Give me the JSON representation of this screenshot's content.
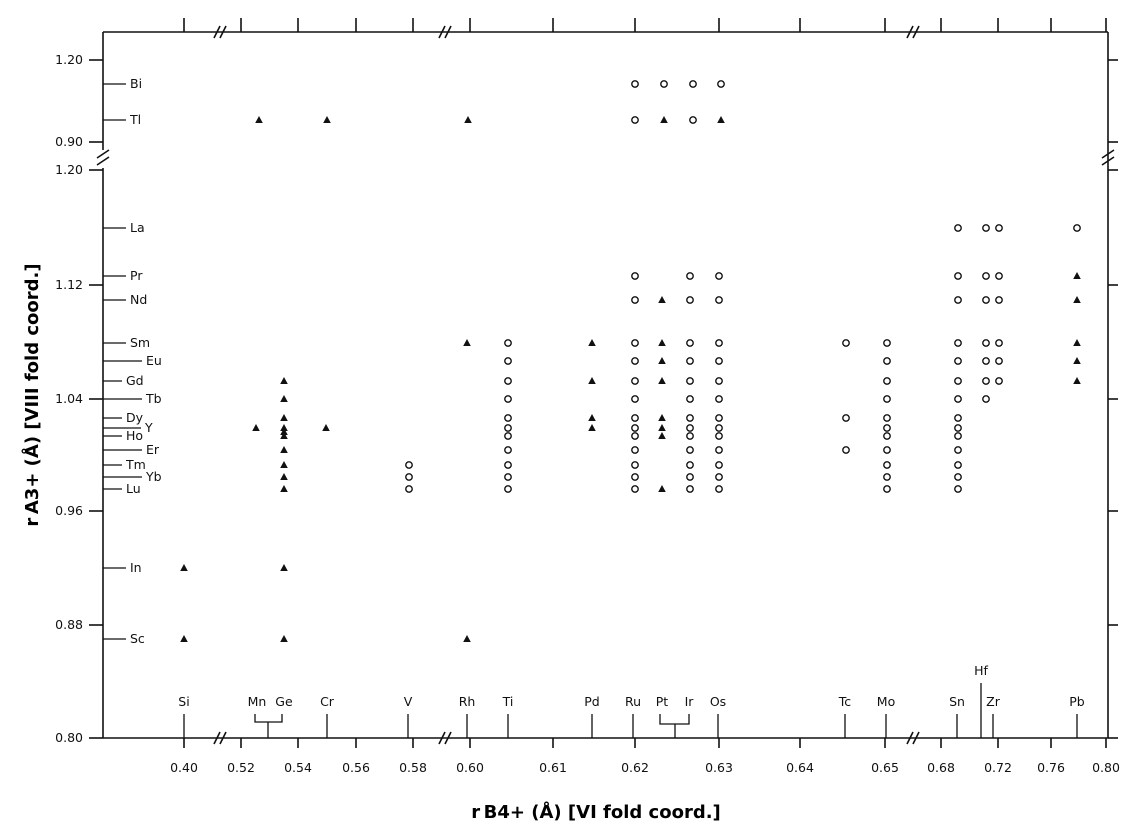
{
  "chart_data": {
    "type": "scatter",
    "xlabel": "r B4+ (Å)  [VI fold coord.]",
    "ylabel": "r A3+ (Å)  [VIII fold coord.]",
    "x_tick_labels": [
      "0.40",
      "0.52",
      "0.54",
      "0.56",
      "0.58",
      "0.60",
      "0.61",
      "0.62",
      "0.63",
      "0.64",
      "0.65",
      "0.68",
      "0.72",
      "0.76",
      "0.80"
    ],
    "y_tick_labels_lower": [
      "0.80",
      "0.88",
      "0.96",
      "1.04",
      "1.12",
      "1.20"
    ],
    "y_tick_labels_upper": [
      "0.90",
      "1.20"
    ],
    "b_cations": [
      {
        "name": "Si",
        "r": 0.4
      },
      {
        "name": "Mn",
        "r": 0.53
      },
      {
        "name": "Ge",
        "r": 0.53
      },
      {
        "name": "Cr",
        "r": 0.55
      },
      {
        "name": "V",
        "r": 0.58
      },
      {
        "name": "Rh",
        "r": 0.6
      },
      {
        "name": "Ti",
        "r": 0.605
      },
      {
        "name": "Pd",
        "r": 0.615
      },
      {
        "name": "Ru",
        "r": 0.62
      },
      {
        "name": "Pt",
        "r": 0.625
      },
      {
        "name": "Ir",
        "r": 0.625
      },
      {
        "name": "Os",
        "r": 0.63
      },
      {
        "name": "Tc",
        "r": 0.645
      },
      {
        "name": "Mo",
        "r": 0.65
      },
      {
        "name": "Sn",
        "r": 0.69
      },
      {
        "name": "Hf",
        "r": 0.71
      },
      {
        "name": "Zr",
        "r": 0.72
      },
      {
        "name": "Pb",
        "r": 0.775
      }
    ],
    "a_cations": [
      {
        "name": "Bi",
        "r": 1.17
      },
      {
        "name": "Tl",
        "r": 0.98
      },
      {
        "name": "La",
        "r": 1.16
      },
      {
        "name": "Pr",
        "r": 1.126
      },
      {
        "name": "Nd",
        "r": 1.109
      },
      {
        "name": "Sm",
        "r": 1.079
      },
      {
        "name": "Eu",
        "r": 1.066
      },
      {
        "name": "Gd",
        "r": 1.053
      },
      {
        "name": "Tb",
        "r": 1.04
      },
      {
        "name": "Dy",
        "r": 1.027
      },
      {
        "name": "Ho",
        "r": 1.015
      },
      {
        "name": "Y",
        "r": 1.019
      },
      {
        "name": "Er",
        "r": 1.004
      },
      {
        "name": "Tm",
        "r": 0.994
      },
      {
        "name": "Yb",
        "r": 0.985
      },
      {
        "name": "Lu",
        "r": 0.977
      },
      {
        "name": "In",
        "r": 0.92
      },
      {
        "name": "Sc",
        "r": 0.87
      }
    ],
    "marker_legend": {
      "circle": "pyrochlore (open circle)",
      "triangle": "non-pyrochlore (filled triangle)"
    },
    "points": [
      {
        "b": "Bi",
        "a": "Ru",
        "m": "o"
      },
      {
        "b": "Bi",
        "a": "Pt",
        "m": "o"
      },
      {
        "b": "Bi",
        "a": "Ir",
        "m": "o"
      },
      {
        "b": "Bi",
        "a": "Os",
        "m": "o"
      },
      {
        "b": "Tl",
        "a": "Mn",
        "m": "t"
      },
      {
        "b": "Tl",
        "a": "Cr",
        "m": "t"
      },
      {
        "b": "Tl",
        "a": "Rh",
        "m": "t"
      },
      {
        "b": "Tl",
        "a": "Ru",
        "m": "o"
      },
      {
        "b": "Tl",
        "a": "Pt",
        "m": "t"
      },
      {
        "b": "Tl",
        "a": "Ir",
        "m": "o"
      },
      {
        "b": "Tl",
        "a": "Os",
        "m": "t"
      }
    ]
  }
}
